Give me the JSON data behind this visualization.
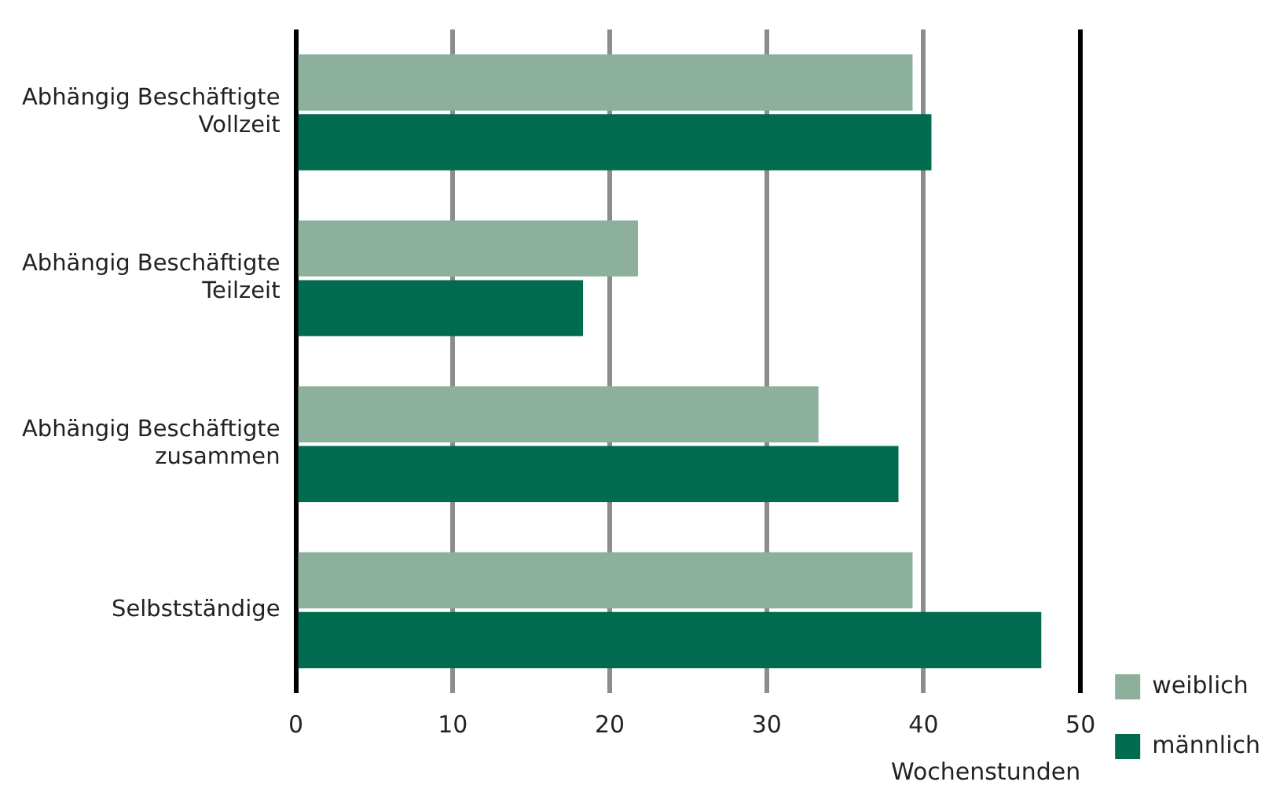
{
  "chart_data": {
    "type": "bar",
    "orientation": "horizontal",
    "categories": [
      "Abhängig Beschäftigte\nVollzeit",
      "Abhängig Beschäftigte\nTeilzeit",
      "Abhängig Beschäftigte\nzusammen",
      "Selbstständige"
    ],
    "series": [
      {
        "name": "weiblich",
        "color": "#8cb09b",
        "values": [
          39.3,
          21.8,
          33.3,
          39.3
        ]
      },
      {
        "name": "männlich",
        "color": "#006b4f",
        "values": [
          40.5,
          18.3,
          38.4,
          47.5
        ]
      }
    ],
    "xlabel": "Wochenstunden",
    "xlim": [
      0,
      50
    ],
    "xticks": [
      0,
      10,
      20,
      30,
      40,
      50
    ],
    "grid": "x",
    "legend": "bottom right"
  }
}
